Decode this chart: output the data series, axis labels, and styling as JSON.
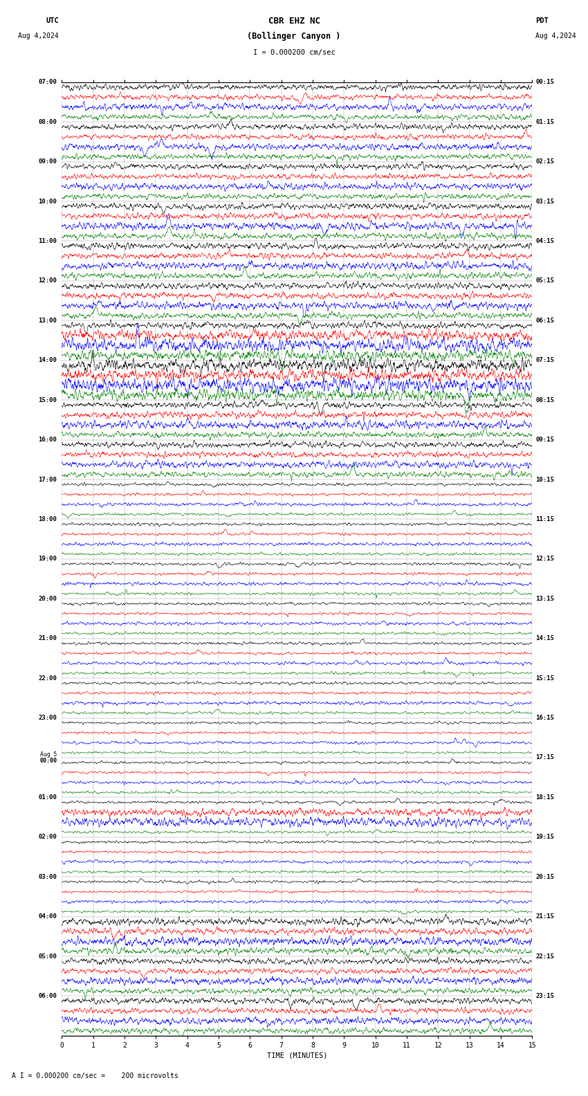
{
  "title_line1": "CBR EHZ NC",
  "title_line2": "(Bollinger Canyon )",
  "title_scale": "I = 0.000200 cm/sec",
  "label_utc": "UTC",
  "label_pdt": "PDT",
  "date_left": "Aug 4,2024",
  "date_right": "Aug 4,2024",
  "xlabel": "TIME (MINUTES)",
  "footer": "A I = 0.000200 cm/sec =    200 microvolts",
  "utc_labels": [
    "07:00",
    "08:00",
    "09:00",
    "10:00",
    "11:00",
    "12:00",
    "13:00",
    "14:00",
    "15:00",
    "16:00",
    "17:00",
    "18:00",
    "19:00",
    "20:00",
    "21:00",
    "22:00",
    "23:00",
    "Aug 5\n00:00",
    "01:00",
    "02:00",
    "03:00",
    "04:00",
    "05:00",
    "06:00"
  ],
  "pdt_labels": [
    "00:15",
    "01:15",
    "02:15",
    "03:15",
    "04:15",
    "05:15",
    "06:15",
    "07:15",
    "08:15",
    "09:15",
    "10:15",
    "11:15",
    "12:15",
    "13:15",
    "14:15",
    "15:15",
    "16:15",
    "17:15",
    "18:15",
    "19:15",
    "20:15",
    "21:15",
    "22:15",
    "23:15"
  ],
  "n_hours": 24,
  "traces_per_hour": 4,
  "colors": [
    "black",
    "red",
    "blue",
    "green"
  ],
  "bg_color": "white",
  "line_width": 0.45,
  "fig_width": 8.5,
  "fig_height": 15.84,
  "dpi": 100,
  "xmin": 0,
  "xmax": 15,
  "xticks": [
    0,
    1,
    2,
    3,
    4,
    5,
    6,
    7,
    8,
    9,
    10,
    11,
    12,
    13,
    14,
    15
  ]
}
